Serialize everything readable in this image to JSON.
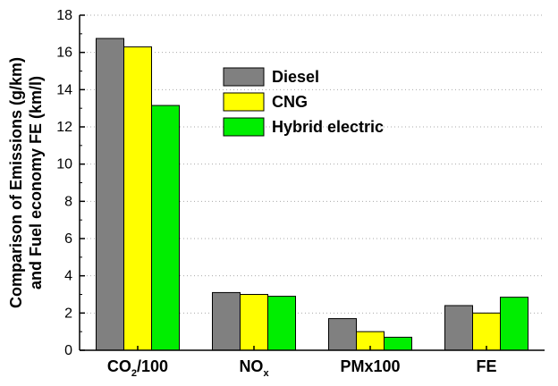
{
  "chart_data": {
    "type": "bar",
    "ylabel": [
      "Comparison of Emissions  (g/km)",
      "and Fuel economy FE (km/l)"
    ],
    "ylim": [
      0,
      18
    ],
    "yticks": [
      0,
      2,
      4,
      6,
      8,
      10,
      12,
      14,
      16,
      18
    ],
    "grid": "horizontal dotted",
    "legend_position": "top-right",
    "categories": [
      {
        "base": "CO",
        "sub": "2",
        "rest": "/100"
      },
      {
        "base": "NO",
        "sub": "x",
        "rest": ""
      },
      {
        "base": "PMx100",
        "sub": "",
        "rest": ""
      },
      {
        "base": "FE",
        "sub": "",
        "rest": ""
      }
    ],
    "series": [
      {
        "name": "Diesel",
        "color": "#808080",
        "values": [
          16.75,
          3.1,
          1.7,
          2.4
        ]
      },
      {
        "name": "CNG",
        "color": "#ffff00",
        "values": [
          16.3,
          3.0,
          1.0,
          2.0
        ]
      },
      {
        "name": "Hybrid electric",
        "color": "#00ee00",
        "values": [
          13.15,
          2.9,
          0.7,
          2.85
        ]
      }
    ]
  }
}
